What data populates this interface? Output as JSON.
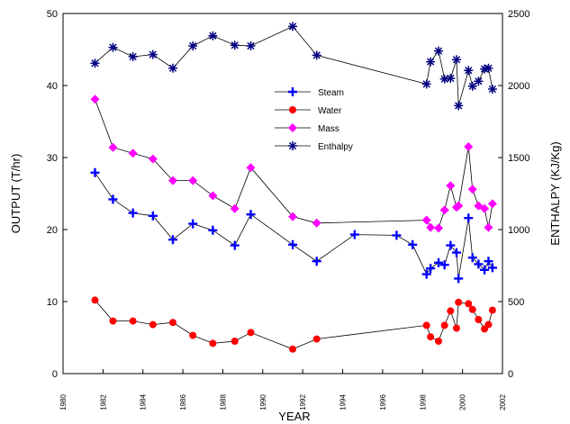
{
  "chart_data": {
    "type": "line",
    "xlabel": "YEAR",
    "ylabel_left": "OUTPUT (T/hr)",
    "ylabel_right": "ENTHALPY (KJ/Kg)",
    "xlim": [
      1980,
      2002
    ],
    "ylim_left": [
      0,
      50
    ],
    "ylim_right": [
      0,
      2500
    ],
    "x_ticks": [
      1980,
      1982,
      1984,
      1986,
      1988,
      1990,
      1992,
      1994,
      1996,
      1998,
      2000,
      2002
    ],
    "y_ticks_left": [
      0,
      10,
      20,
      30,
      40,
      50
    ],
    "y_ticks_right": [
      0,
      500,
      1000,
      1500,
      2000,
      2500
    ],
    "grid": false,
    "legend_position": "center-right",
    "series": [
      {
        "name": "Steam",
        "axis": "left",
        "marker": "plus",
        "color": "#0000ff",
        "x": [
          1981.6,
          1982.5,
          1983.5,
          1984.5,
          1985.5,
          1986.5,
          1987.5,
          1988.6,
          1989.4,
          1991.5,
          1992.7,
          1994.6,
          1996.7,
          1997.5,
          1998.2,
          1998.4,
          1998.8,
          1999.1,
          1999.4,
          1999.7,
          1999.8,
          2000.3,
          2000.5,
          2000.8,
          2001.1,
          2001.3,
          2001.5
        ],
        "values": [
          27.9,
          24.2,
          22.3,
          21.9,
          18.6,
          20.8,
          19.9,
          17.8,
          22.1,
          17.9,
          15.6,
          19.3,
          19.2,
          17.9,
          13.8,
          14.6,
          15.4,
          15.1,
          17.8,
          16.8,
          13.2,
          21.6,
          16.1,
          15.2,
          14.4,
          15.6,
          14.7
        ]
      },
      {
        "name": "Water",
        "axis": "left",
        "marker": "circle",
        "color": "#ff0000",
        "x": [
          1981.6,
          1982.5,
          1983.5,
          1984.5,
          1985.5,
          1986.5,
          1987.5,
          1988.6,
          1989.4,
          1991.5,
          1992.7,
          1998.2,
          1998.4,
          1998.8,
          1999.1,
          1999.4,
          1999.7,
          1999.8,
          2000.3,
          2000.5,
          2000.8,
          2001.1,
          2001.3,
          2001.5
        ],
        "values": [
          10.2,
          7.3,
          7.3,
          6.8,
          7.1,
          5.3,
          4.2,
          4.5,
          5.7,
          3.4,
          4.8,
          6.7,
          5.1,
          4.5,
          6.7,
          8.7,
          6.3,
          9.9,
          9.7,
          8.9,
          7.5,
          6.2,
          6.8,
          8.8
        ]
      },
      {
        "name": "Mass",
        "axis": "left",
        "marker": "diamond",
        "color": "#ff00ff",
        "x": [
          1981.6,
          1982.5,
          1983.5,
          1984.5,
          1985.5,
          1986.5,
          1987.5,
          1988.6,
          1989.4,
          1991.5,
          1992.7,
          1998.2,
          1998.4,
          1998.8,
          1999.1,
          1999.4,
          1999.7,
          1999.8,
          2000.3,
          2000.5,
          2000.8,
          2001.1,
          2001.3,
          2001.5
        ],
        "values": [
          38.1,
          31.4,
          30.6,
          29.8,
          26.8,
          26.8,
          24.7,
          22.9,
          28.6,
          21.8,
          20.9,
          21.3,
          20.3,
          20.2,
          22.7,
          26.1,
          23.1,
          23.3,
          31.5,
          25.6,
          23.3,
          22.9,
          20.3,
          23.6
        ]
      },
      {
        "name": "Enthalpy",
        "axis": "right",
        "marker": "star",
        "color": "#000080",
        "x": [
          1981.6,
          1982.5,
          1983.5,
          1984.5,
          1985.5,
          1986.5,
          1987.5,
          1988.6,
          1989.4,
          1991.5,
          1992.7,
          1998.2,
          1998.4,
          1998.8,
          1999.1,
          1999.4,
          1999.7,
          1999.8,
          2000.3,
          2000.5,
          2000.8,
          2001.1,
          2001.3,
          2001.5
        ],
        "values": [
          2155,
          2265,
          2200,
          2215,
          2120,
          2275,
          2345,
          2280,
          2275,
          2410,
          2210,
          2010,
          2165,
          2240,
          2045,
          2050,
          2180,
          1860,
          2105,
          1995,
          2030,
          2115,
          2120,
          1975
        ]
      }
    ]
  }
}
